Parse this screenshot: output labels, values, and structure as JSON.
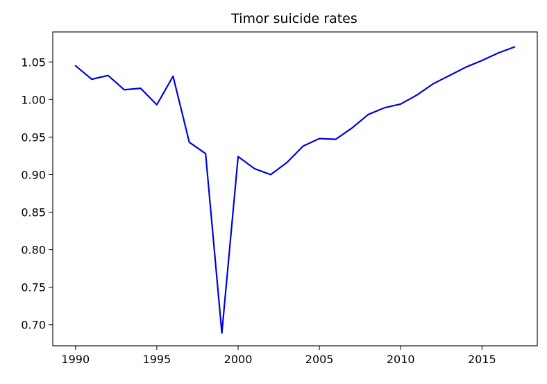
{
  "chart_data": {
    "type": "line",
    "title": "Timor suicide rates",
    "xlabel": "",
    "ylabel": "",
    "x": [
      1990,
      1991,
      1992,
      1993,
      1994,
      1995,
      1996,
      1997,
      1998,
      1999,
      2000,
      2001,
      2002,
      2003,
      2004,
      2005,
      2006,
      2007,
      2008,
      2009,
      2010,
      2011,
      2012,
      2013,
      2014,
      2015,
      2016,
      2017
    ],
    "series": [
      {
        "color": "#0000dd",
        "values": [
          1.045,
          1.027,
          1.032,
          1.013,
          1.015,
          0.993,
          1.031,
          0.943,
          0.928,
          0.689,
          0.924,
          0.908,
          0.9,
          0.916,
          0.938,
          0.948,
          0.947,
          0.962,
          0.98,
          0.989,
          0.994,
          1.006,
          1.021,
          1.032,
          1.043,
          1.052,
          1.062,
          1.07
        ]
      }
    ],
    "xlim": [
      1988.6,
      2018.4
    ],
    "ylim": [
      0.672,
      1.09
    ],
    "xticks": [
      1990,
      1995,
      2000,
      2005,
      2010,
      2015
    ],
    "xtick_labels": [
      "1990",
      "1995",
      "2000",
      "2005",
      "2010",
      "2015"
    ],
    "yticks": [
      0.7,
      0.75,
      0.8,
      0.85,
      0.9,
      0.95,
      1.0,
      1.05
    ],
    "ytick_labels": [
      "0.70",
      "0.75",
      "0.80",
      "0.85",
      "0.90",
      "0.95",
      "1.00",
      "1.05"
    ],
    "grid": false,
    "legend": "none"
  }
}
